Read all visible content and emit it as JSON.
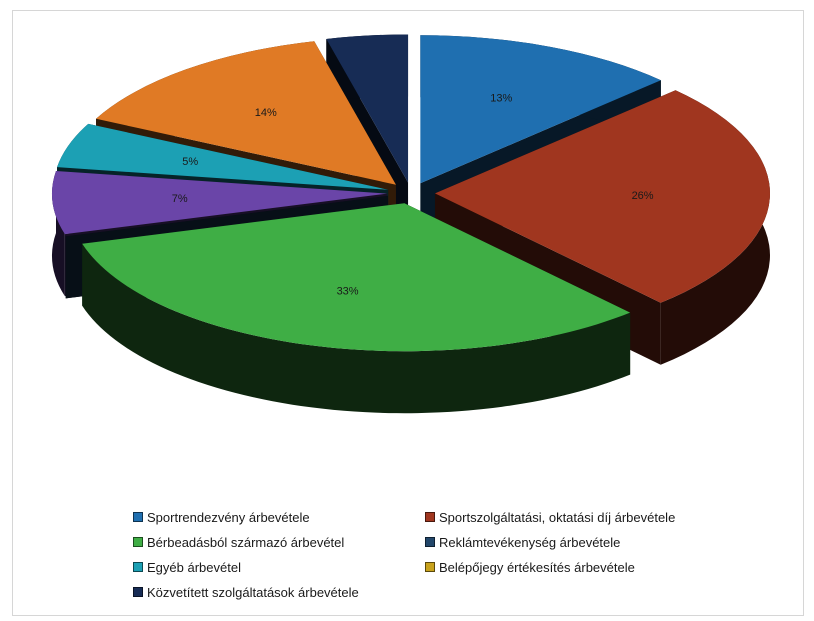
{
  "chart_data": {
    "type": "pie",
    "title": "",
    "slices": [
      {
        "label": "Sportrendezvény árbevétele",
        "value": 13,
        "value_label": "13%",
        "color": "#1f6fb0"
      },
      {
        "label": "Sportszolgáltatási, oktatási díj árbevétele",
        "value": 26,
        "value_label": "26%",
        "color": "#a0361f"
      },
      {
        "label": "Bérbeadásból származó árbevétel",
        "value": 33,
        "value_label": "33%",
        "color": "#3fae45"
      },
      {
        "label": "Reklámtevékenység árbevétele",
        "value": 0,
        "value_label": "",
        "color": "#22466a"
      },
      {
        "label": "Egyéb árbevétel",
        "value": 7,
        "value_label": "7%",
        "color": "#6a45a8"
      },
      {
        "label": "Belépőjegy értékesítés árbevétele",
        "value": 5,
        "value_label": "5%",
        "color": "#1ca0b4"
      },
      {
        "label": "Közvetített szolgáltatások árbevétele",
        "value": 14,
        "value_label": "14%",
        "color": "#e07a25"
      },
      {
        "label": "",
        "value": 4,
        "value_label": "",
        "color": "#172c55"
      }
    ],
    "legend": {
      "position": "bottom",
      "items": [
        {
          "label": "Sportrendezvény árbevétele",
          "color": "#1f6fb0"
        },
        {
          "label": "Sportszolgáltatási, oktatási díj árbevétele",
          "color": "#a0361f"
        },
        {
          "label": "Bérbeadásból származó árbevétel",
          "color": "#3fae45"
        },
        {
          "label": "Reklámtevékenység árbevétele",
          "color": "#22466a"
        },
        {
          "label": "Egyéb árbevétel",
          "color": "#1ca0b4"
        },
        {
          "label": "Belépőjegy értékesítés árbevétele",
          "color": "#c8a21c"
        },
        {
          "label": "Közvetített szolgáltatások árbevétele",
          "color": "#172c55"
        }
      ]
    }
  }
}
